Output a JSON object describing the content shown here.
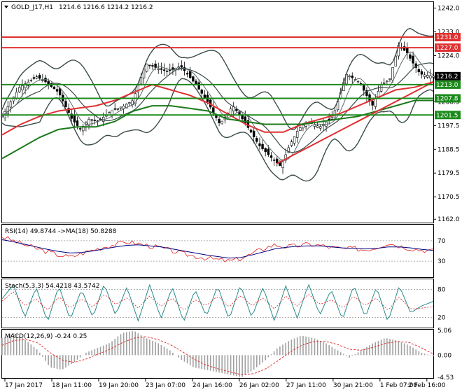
{
  "header": {
    "symbol": "GOLD_J17,H1",
    "ohlc": "1214.6 1216.6 1214.2 1216.2"
  },
  "chart_data": {
    "type": "candlestick",
    "symbol": "GOLD_J17",
    "timeframe": "H1",
    "price_axis": {
      "ticks": [
        1162.0,
        1170.5,
        1179.5,
        1188.5,
        1197.5,
        1206.5,
        1215.5,
        1224.0,
        1233.0,
        1242.0
      ],
      "ylim": [
        1161.0,
        1244.0
      ]
    },
    "time_axis": {
      "labels": [
        "17 Jan 2017",
        "18 Jan 11:00",
        "19 Jan 20:00",
        "23 Jan 07:00",
        "24 Jan 16:00",
        "26 Jan 02:00",
        "27 Jan 11:00",
        "30 Jan 21:00",
        "1 Feb 07:00",
        "2 Feb 16:00"
      ]
    },
    "close_path": {
      "x": [
        0,
        4,
        8,
        10,
        13,
        16,
        18,
        20,
        22,
        25,
        28,
        30,
        33,
        36,
        38,
        41,
        44,
        47,
        50,
        53,
        56,
        59,
        62,
        64,
        66,
        68,
        70,
        73,
        76,
        79,
        82,
        85,
        87,
        89,
        91,
        93,
        94,
        96,
        99
      ],
      "close": [
        1201,
        1212,
        1216,
        1214,
        1210,
        1200,
        1196,
        1200,
        1199,
        1203,
        1205,
        1207,
        1221,
        1219,
        1218,
        1220,
        1214,
        1207,
        1198,
        1205,
        1198,
        1190,
        1185,
        1182,
        1190,
        1196,
        1199,
        1197,
        1201,
        1217,
        1214,
        1205,
        1213,
        1215,
        1228,
        1225,
        1222,
        1217,
        1216.2
      ]
    },
    "moving_averages": [
      {
        "color": "#e03030",
        "values": [
          1194,
          1198,
          1201,
          1203,
          1204,
          1205,
          1207,
          1210,
          1213,
          1211,
          1209,
          1206,
          1202,
          1198,
          1195,
          1195,
          1198,
          1200,
          1202,
          1205,
          1208,
          1211,
          1212,
          1214
        ]
      },
      {
        "color": "#1b7a1b",
        "values": [
          1185,
          1189,
          1193,
          1196,
          1197,
          1197,
          1199,
          1203,
          1205,
          1205,
          1204,
          1203,
          1200,
          1199,
          1198,
          1198,
          1198,
          1199,
          1200,
          1201,
          1203,
          1205,
          1207,
          1207
        ]
      }
    ],
    "horizontal_levels": [
      {
        "value": 1231.0,
        "color": "#e03030"
      },
      {
        "value": 1227.0,
        "color": "#e03030"
      },
      {
        "value": 1213.0,
        "color": "#1b8a1b"
      },
      {
        "value": 1207.8,
        "color": "#1b8a1b"
      },
      {
        "value": 1201.5,
        "color": "#1b8a1b"
      }
    ],
    "trendlines": [
      {
        "color": "#e03030",
        "from": {
          "x": 63,
          "y": 1183
        },
        "to": {
          "x": 99,
          "y": 1214
        }
      }
    ],
    "current_price": 1216.2,
    "level_labels": [
      "1231.0",
      "1227.0",
      "1216.2",
      "1213.0",
      "1207.8",
      "1201.5"
    ],
    "panels": {
      "rsi": {
        "title": "RSI(14) 49.8744 ->MA(18) 50.8288",
        "levels": [
          "70",
          "30"
        ],
        "range": [
          0,
          100
        ],
        "rsi": [
          78,
          70,
          62,
          55,
          48,
          42,
          38,
          45,
          52,
          58,
          63,
          68,
          64,
          60,
          56,
          50,
          44,
          40,
          36,
          33,
          30,
          35,
          44,
          55,
          62,
          58,
          60,
          63,
          61,
          57,
          54,
          55,
          52,
          57,
          66,
          60,
          55,
          52,
          50
        ],
        "ma": [
          72,
          68,
          63,
          58,
          53,
          49,
          46,
          47,
          50,
          54,
          58,
          61,
          62,
          60,
          58,
          54,
          50,
          46,
          42,
          39,
          36,
          37,
          42,
          48,
          54,
          57,
          59,
          60,
          60,
          58,
          56,
          55,
          54,
          55,
          58,
          58,
          56,
          53,
          51
        ]
      },
      "stoch": {
        "title": "Stoch(5,3,3) 54.4218 43.5742",
        "levels": [
          "80",
          "20"
        ],
        "range": [
          0,
          100
        ],
        "k": [
          60,
          90,
          20,
          85,
          10,
          88,
          15,
          80,
          20,
          92,
          25,
          85,
          12,
          90,
          18,
          85,
          10,
          80,
          22,
          88,
          15,
          90,
          20,
          85,
          12,
          88,
          18,
          92,
          25,
          80,
          15,
          90,
          20,
          85,
          10,
          88,
          30,
          45,
          54.42
        ],
        "d": [
          55,
          75,
          45,
          60,
          35,
          65,
          40,
          60,
          42,
          70,
          48,
          62,
          40,
          66,
          44,
          62,
          35,
          58,
          45,
          66,
          42,
          68,
          45,
          62,
          38,
          66,
          44,
          70,
          48,
          58,
          40,
          66,
          45,
          62,
          35,
          64,
          38,
          40,
          43.57
        ]
      },
      "macd": {
        "title": "MACD(12,26,9) -0.24 0.25",
        "ticks": [
          "5.06",
          "0.00",
          "-4.53"
        ],
        "range": [
          -4.53,
          5.06
        ],
        "hist": [
          3.5,
          4.5,
          3.0,
          1.0,
          -2.5,
          -3.0,
          -1.5,
          0.5,
          1.5,
          2.5,
          4.5,
          5.0,
          3.5,
          2.5,
          1.0,
          -1.0,
          -2.5,
          -3.0,
          -3.5,
          -4.0,
          -4.5,
          -3.0,
          -1.0,
          1.5,
          3.0,
          4.0,
          3.5,
          2.5,
          1.0,
          -0.5,
          1.0,
          2.5,
          3.5,
          3.0,
          2.0,
          0.5,
          -0.24
        ],
        "signal": [
          2.0,
          3.0,
          3.2,
          2.5,
          0.5,
          -1.0,
          -1.5,
          -0.8,
          0.2,
          1.2,
          2.5,
          3.5,
          3.8,
          3.2,
          2.2,
          0.8,
          -0.8,
          -2.0,
          -2.8,
          -3.4,
          -4.0,
          -3.8,
          -2.8,
          -1.2,
          0.6,
          2.0,
          2.8,
          2.8,
          2.2,
          1.2,
          1.0,
          1.6,
          2.4,
          2.8,
          2.6,
          1.5,
          0.25
        ]
      }
    }
  }
}
